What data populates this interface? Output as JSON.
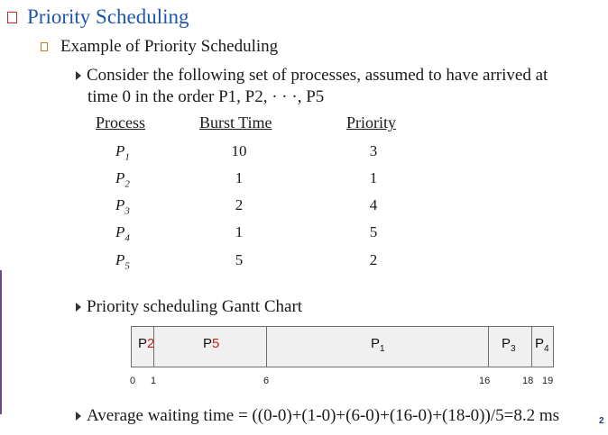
{
  "title": "Priority Scheduling",
  "subtitle": "Example of Priority Scheduling",
  "bullet1": {
    "line1": "Consider the following set of processes, assumed to have arrived at",
    "line2": "time 0 in the order P1, P2, · · ·, P5"
  },
  "table": {
    "headers": {
      "process": "Process",
      "burst": "Burst Time",
      "priority": "Priority"
    },
    "rows": [
      {
        "name": "P",
        "sub": "1",
        "burst": "10",
        "priority": "3"
      },
      {
        "name": "P",
        "sub": "2",
        "burst": "1",
        "priority": "1"
      },
      {
        "name": "P",
        "sub": "3",
        "burst": "2",
        "priority": "4"
      },
      {
        "name": "P",
        "sub": "4",
        "burst": "1",
        "priority": "5"
      },
      {
        "name": "P",
        "sub": "5",
        "burst": "5",
        "priority": "2"
      }
    ]
  },
  "bullet2": "Priority scheduling Gantt Chart",
  "gantt": {
    "blocks": [
      {
        "label": "P",
        "sub": "2",
        "sub_color": "red",
        "start": 0,
        "end": 1
      },
      {
        "label": "P",
        "sub": "5",
        "sub_color": "red",
        "start": 1,
        "end": 6
      },
      {
        "label": "P",
        "sub": "1",
        "sub_color": "black",
        "start": 6,
        "end": 16
      },
      {
        "label": "P",
        "sub": "3",
        "sub_color": "black",
        "start": 16,
        "end": 18
      },
      {
        "label": "P",
        "sub": "4",
        "sub_color": "black",
        "start": 18,
        "end": 19
      }
    ],
    "ticks": [
      "0",
      "1",
      "6",
      "16",
      "18",
      "19"
    ]
  },
  "bullet3": "Average waiting time = ((0-0)+(1-0)+(6-0)+(16-0)+(18-0))/5=8.2 ms",
  "page_number": "2",
  "colors": {
    "title": "#1f56a8",
    "accent_red": "#c0261a",
    "gantt_fill": "#f0f0f0"
  }
}
